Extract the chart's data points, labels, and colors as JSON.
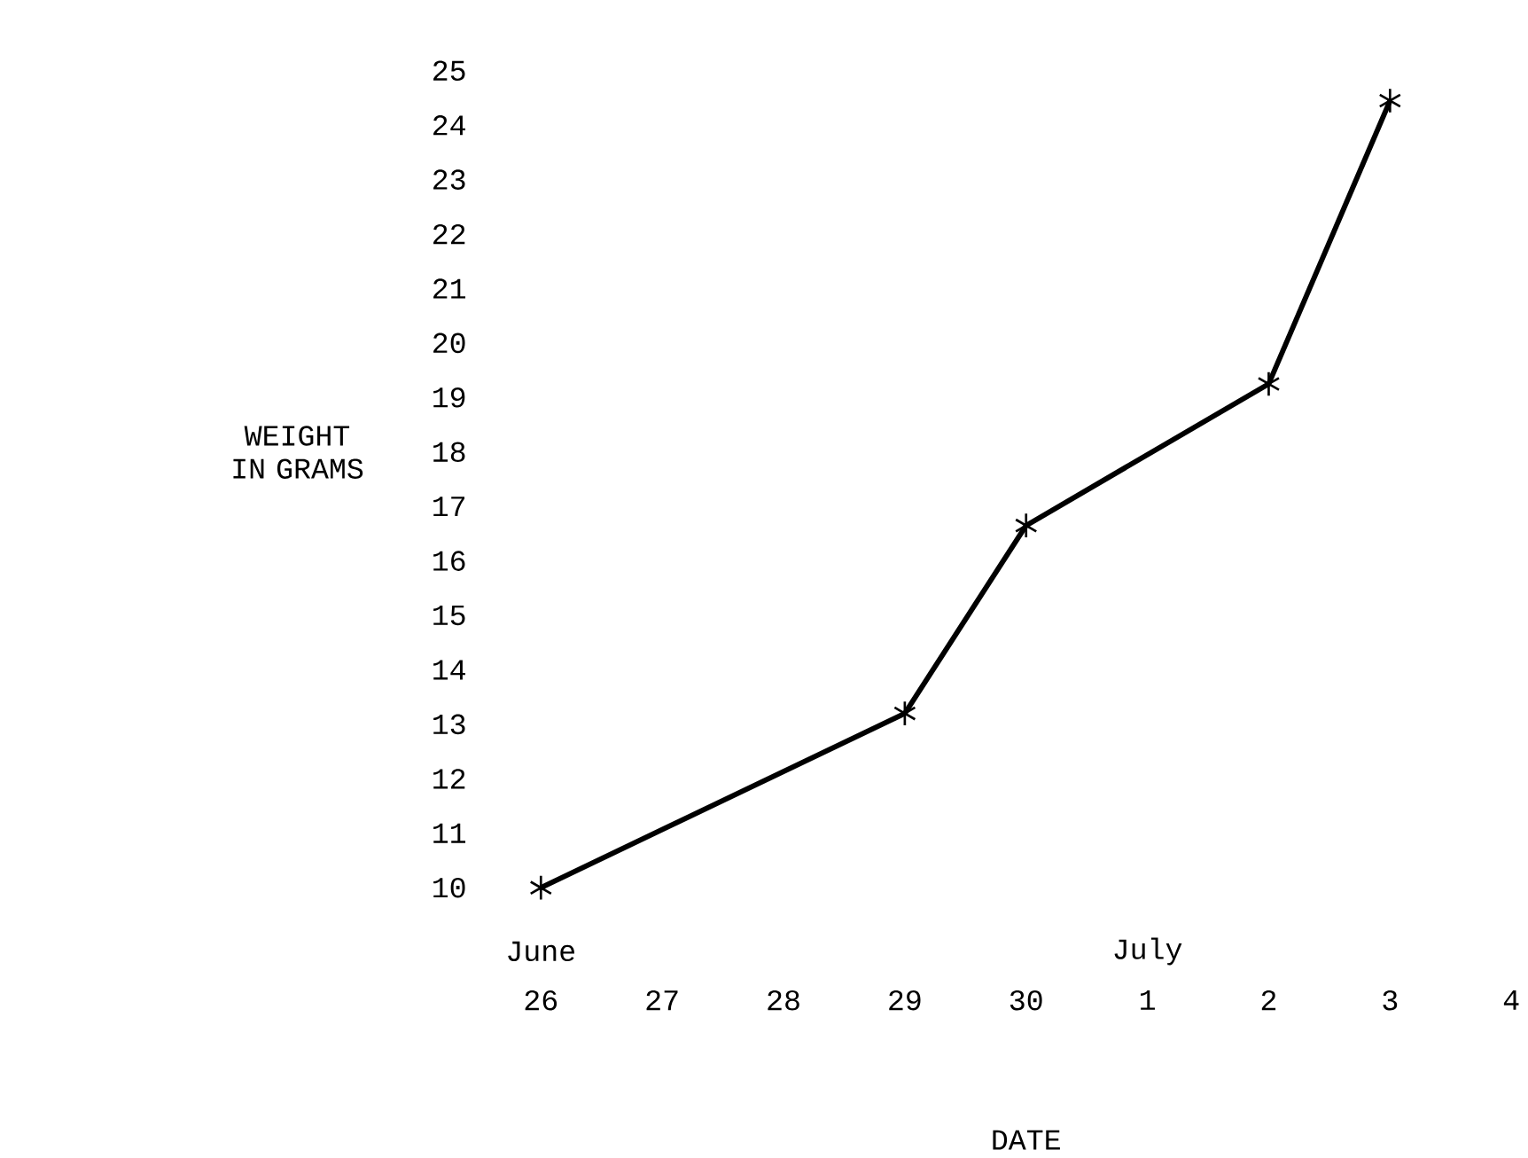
{
  "chart_data": {
    "type": "line",
    "xlabel": "DATE",
    "ylabel": "WEIGHT IN GRAMS",
    "categories": [
      "26",
      "27",
      "28",
      "29",
      "30",
      "1",
      "2",
      "3",
      "4"
    ],
    "values": [
      10.0,
      null,
      null,
      13.2,
      16.65,
      null,
      19.25,
      24.45,
      null
    ],
    "color": "#000000",
    "marker": "cross",
    "ylim": [
      10,
      25
    ],
    "yticks": [
      10,
      11,
      12,
      13,
      14,
      15,
      16,
      17,
      18,
      19,
      20,
      21,
      22,
      23,
      24,
      25
    ],
    "annotations": [
      "June",
      "July"
    ]
  }
}
